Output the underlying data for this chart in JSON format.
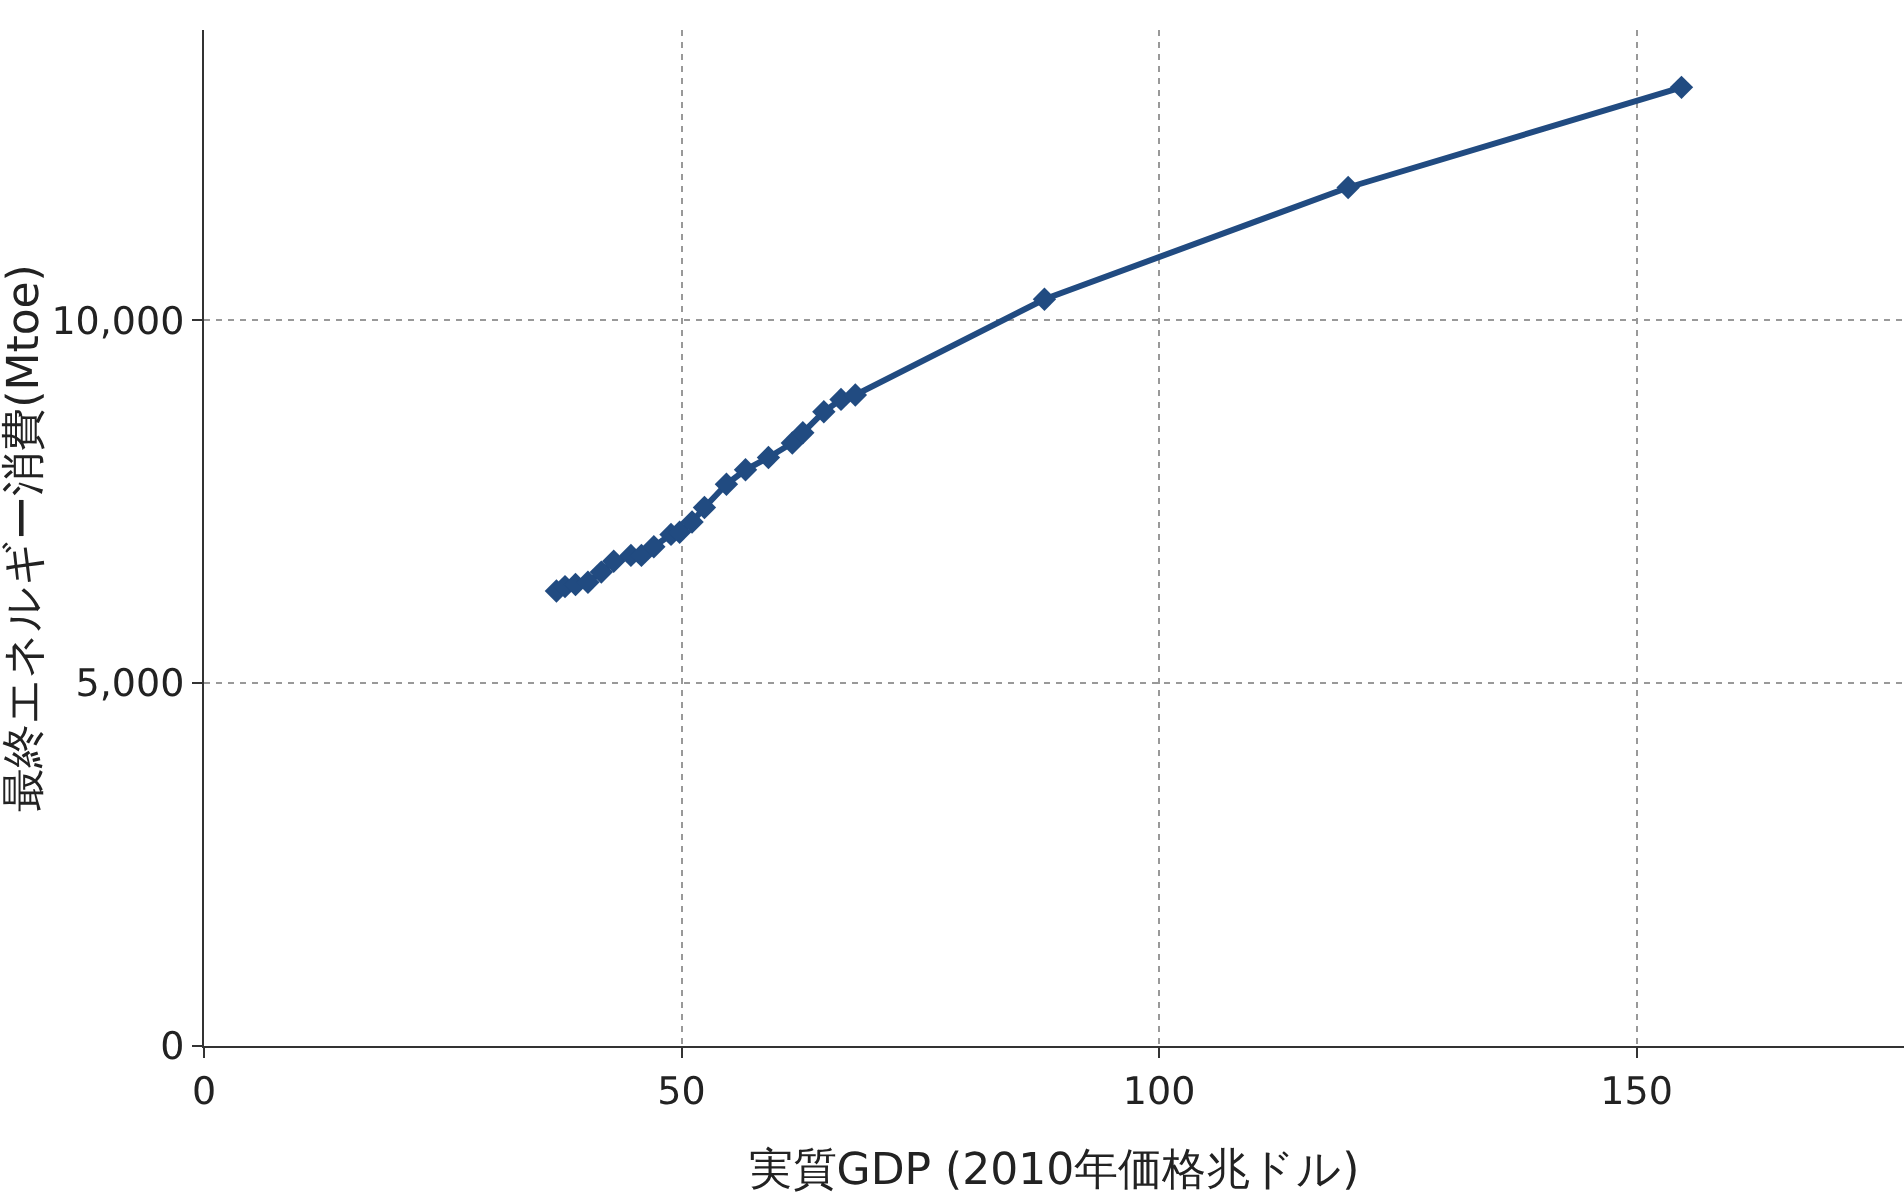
{
  "chart_data": {
    "type": "line",
    "xlabel": "実質GDP (2010年価格兆ドル)",
    "ylabel": "最終エネルギー消費(Mtoe)",
    "series": [
      {
        "color": "#214b81",
        "x": [
          36.9,
          37.8,
          38.9,
          40.2,
          41.6,
          42.9,
          44.7,
          45.8,
          47.1,
          48.9,
          49.8,
          51.1,
          52.4,
          54.7,
          56.7,
          59.1,
          61.6,
          62.7,
          64.9,
          66.7,
          68.2,
          88.0,
          119.8,
          154.7
        ],
        "values": [
          6270,
          6330,
          6360,
          6390,
          6530,
          6680,
          6760,
          6760,
          6880,
          7050,
          7080,
          7220,
          7420,
          7740,
          7940,
          8110,
          8310,
          8450,
          8740,
          8910,
          8970,
          10290,
          11830,
          13210
        ]
      }
    ],
    "xlim": [
      0,
      178
    ],
    "ylim": [
      0,
      14000
    ],
    "xticks": [
      0,
      50,
      100,
      150
    ],
    "yticks": [
      0,
      {
        "value": 5000,
        "label": "5,000"
      },
      {
        "value": 10000,
        "label": "10,000"
      }
    ],
    "grid": true,
    "marker": "diamond",
    "line_style": "solid"
  }
}
